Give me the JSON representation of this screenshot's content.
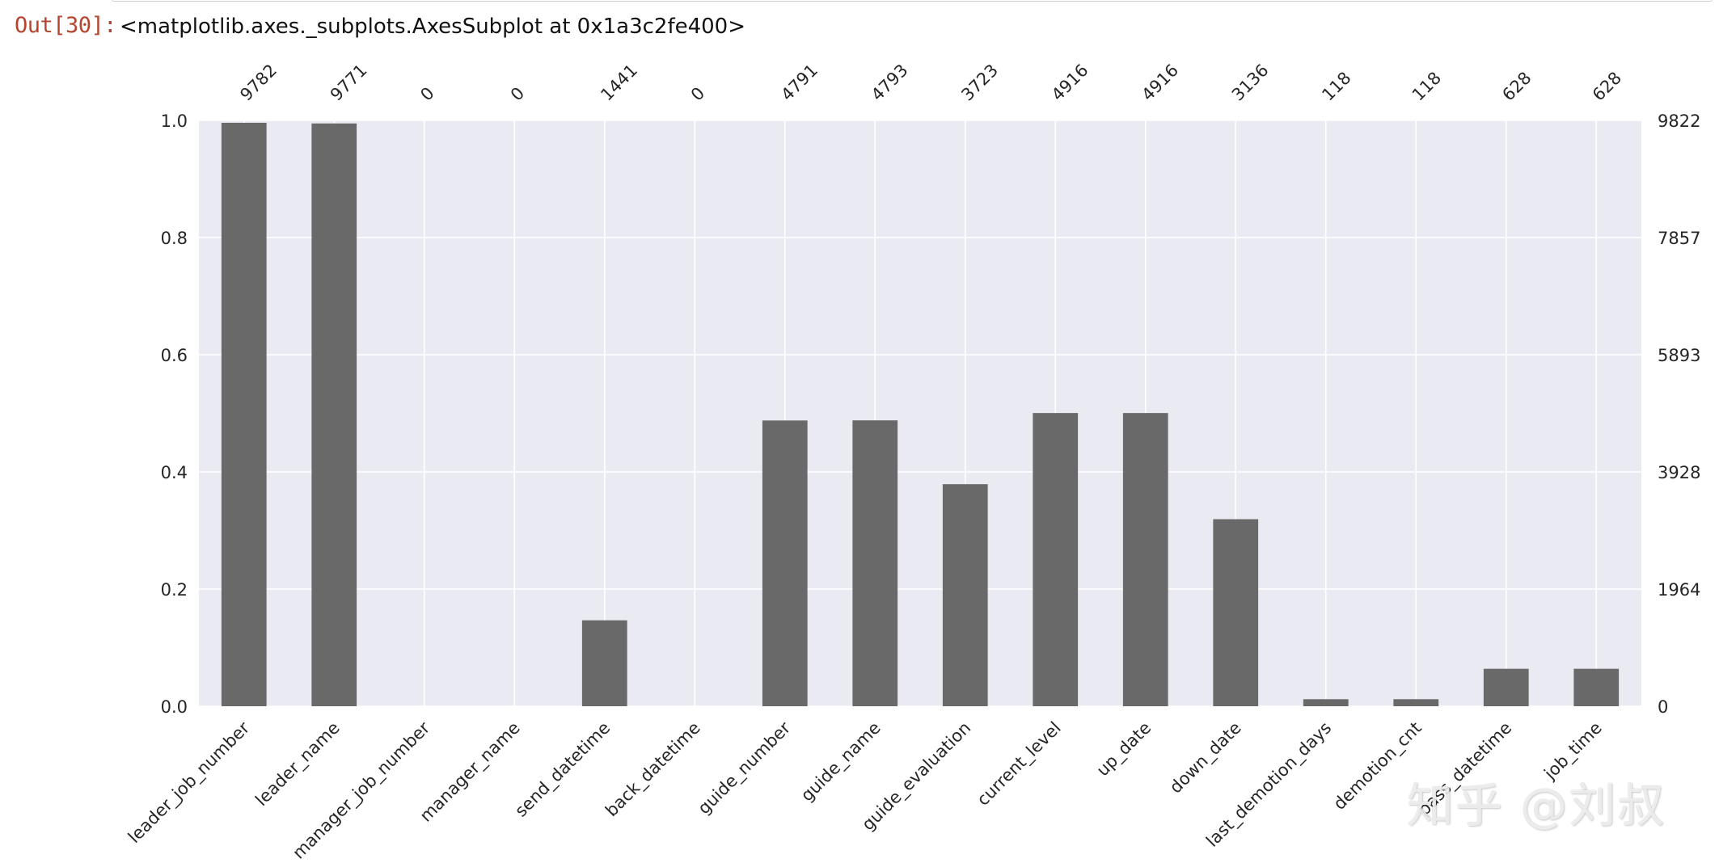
{
  "output_cell": {
    "prompt": "Out[30]:",
    "text": "<matplotlib.axes._subplots.AxesSubplot at 0x1a3c2fe400>"
  },
  "watermark": "知乎 @刘叔",
  "chart_data": {
    "type": "bar",
    "categories": [
      "leader_job_number",
      "leader_name",
      "manager_job_number",
      "manager_name",
      "send_datetime",
      "back_datetime",
      "guide_number",
      "guide_name",
      "guide_evaluation",
      "current_level",
      "up_date",
      "down_date",
      "last_demotion_days",
      "demotion_cnt",
      "pass_datetime",
      "job_time"
    ],
    "values": [
      9782,
      9771,
      0,
      0,
      1441,
      0,
      4791,
      4793,
      3723,
      4916,
      4916,
      3136,
      118,
      118,
      628,
      628
    ],
    "total": 9822,
    "ylim": [
      0,
      1.0
    ],
    "left_ticks": [
      "0.0",
      "0.2",
      "0.4",
      "0.6",
      "0.8",
      "1.0"
    ],
    "right_ticks": [
      "0",
      "1964",
      "3928",
      "5893",
      "7857",
      "9822"
    ],
    "grid": true,
    "bar_color": "#696969",
    "plot_bg": "#eaeaf2",
    "grid_color": "#ffffff"
  }
}
